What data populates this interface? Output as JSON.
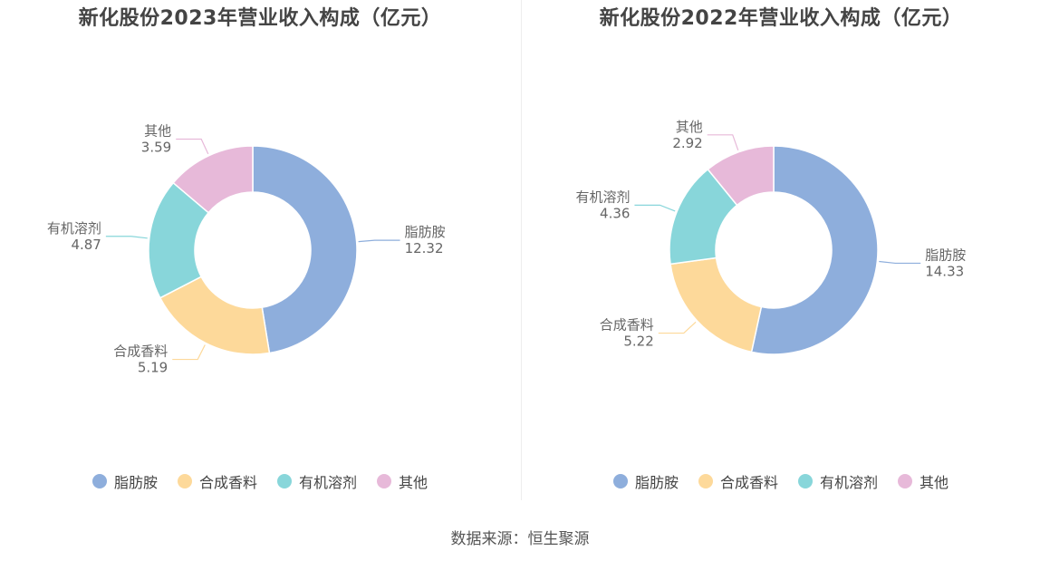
{
  "colors": [
    "#8eaedc",
    "#fdd99a",
    "#88d6da",
    "#e7b9d9"
  ],
  "source": "数据来源：恒生聚源",
  "chart_data": [
    {
      "type": "pie",
      "title": "新化股份2023年营业收入构成（亿元）",
      "legend_position": "bottom",
      "categories": [
        "脂肪胺",
        "合成香料",
        "有机溶剂",
        "其他"
      ],
      "values": [
        12.32,
        5.19,
        4.87,
        3.59
      ],
      "labels": [
        "12.32",
        "5.19",
        "4.87",
        "3.59"
      ]
    },
    {
      "type": "pie",
      "title": "新化股份2022年营业收入构成（亿元）",
      "legend_position": "bottom",
      "categories": [
        "脂肪胺",
        "合成香料",
        "有机溶剂",
        "其他"
      ],
      "values": [
        14.33,
        5.22,
        4.36,
        2.92
      ],
      "labels": [
        "14.33",
        "5.22",
        "4.36",
        "2.92"
      ]
    }
  ]
}
